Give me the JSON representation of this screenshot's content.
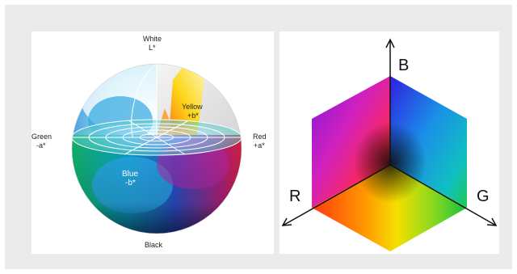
{
  "lab": {
    "top_label": "White",
    "top_sub": "L*",
    "yellow_label": "Yellow",
    "yellow_sub": "+b*",
    "green_label": "Green",
    "green_sub": "-a*",
    "red_label": "Red",
    "red_sub": "+a*",
    "blue_label": "Blue",
    "blue_sub": "-b*",
    "bottom_label": "Black"
  },
  "rgb": {
    "axis_b": "B",
    "axis_r": "R",
    "axis_g": "G"
  }
}
